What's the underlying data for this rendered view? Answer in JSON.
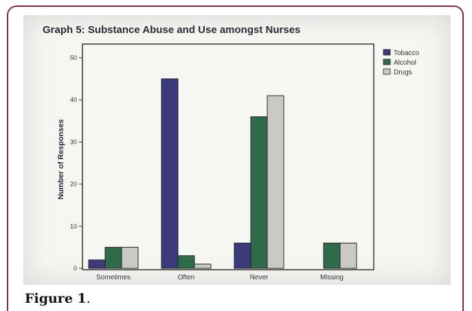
{
  "figure_caption": {
    "label": "Figure 1",
    "suffix": "."
  },
  "chart_data": {
    "type": "bar",
    "title": "Graph 5: Substance Abuse and Use amongst Nurses",
    "xlabel": "",
    "ylabel": "Number of Responses",
    "categories": [
      "Sometimes",
      "Often",
      "Never",
      "Missing"
    ],
    "series": [
      {
        "name": "Tobacco",
        "color": "#3b3a7a",
        "values": [
          2,
          45,
          6,
          0
        ]
      },
      {
        "name": "Alcohol",
        "color": "#2f6b4a",
        "values": [
          5,
          3,
          36,
          6
        ]
      },
      {
        "name": "Drugs",
        "color": "#c9c9c6",
        "values": [
          5,
          1,
          41,
          6
        ]
      }
    ],
    "ylim": [
      0,
      50
    ],
    "yticks": [
      0,
      10,
      20,
      30,
      40,
      50
    ],
    "grid": false,
    "legend_position": "top-right"
  }
}
